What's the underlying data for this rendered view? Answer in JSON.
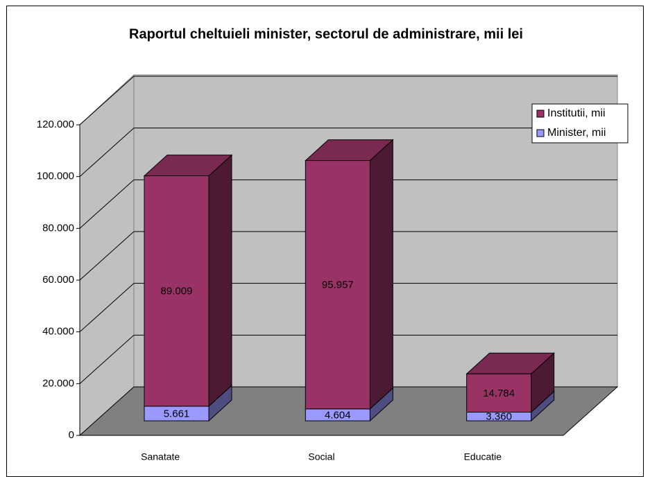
{
  "chart_data": {
    "type": "bar3d_stacked",
    "title": "Raportul cheltuieli minister, sectorul de administrare, mii lei",
    "categories": [
      "Sanatate",
      "Social",
      "Educatie"
    ],
    "series": [
      {
        "name": "Minister, mii",
        "color": "#9999ff",
        "values": [
          5661,
          4604,
          3360
        ],
        "value_labels": [
          "5.661",
          "4.604",
          "3.360"
        ]
      },
      {
        "name": "Institutii, mii",
        "color": "#993366",
        "values": [
          89009,
          95957,
          14784
        ],
        "value_labels": [
          "89.009",
          "95.957",
          "14.784"
        ]
      }
    ],
    "ylim": [
      0,
      120000
    ],
    "yticks": [
      0,
      {
        "value": 20000,
        "label": "20.000"
      },
      {
        "value": 40000,
        "label": "40.000"
      },
      {
        "value": 60000,
        "label": "60.000"
      },
      {
        "value": 80000,
        "label": "80.000"
      },
      {
        "value": 100000,
        "label": "100.000"
      },
      {
        "value": 120000,
        "label": "120.000"
      }
    ],
    "grid": true
  }
}
